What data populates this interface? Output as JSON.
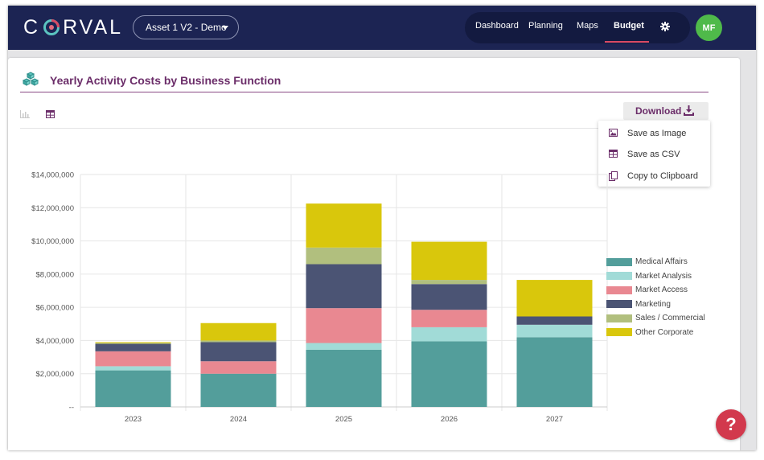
{
  "header": {
    "logo_text_left": "C",
    "logo_text_right": "RVAL",
    "asset_select": "Asset 1 V2 - Demo",
    "nav": [
      {
        "label": "Dashboard",
        "active": false
      },
      {
        "label": "Planning",
        "active": false
      },
      {
        "label": "Maps",
        "active": false
      },
      {
        "label": "Budget",
        "active": true
      }
    ],
    "avatar_initials": "MF",
    "colors": {
      "topbar": "#1c2453",
      "accent": "#d94a64",
      "avatar": "#4fba4a"
    }
  },
  "card": {
    "title": "Yearly Activity Costs by Business Function",
    "title_icon": "cubes-icon",
    "download_label": "Download",
    "download_menu": [
      {
        "label": "Save as Image",
        "icon": "image-icon"
      },
      {
        "label": "Save as CSV",
        "icon": "table-icon"
      },
      {
        "label": "Copy to Clipboard",
        "icon": "clipboard-icon"
      }
    ]
  },
  "help_label": "?",
  "chart_data": {
    "type": "bar",
    "stacked": true,
    "title": "Yearly Activity Costs by Business Function",
    "categories": [
      "2023",
      "2024",
      "2025",
      "2026",
      "2027"
    ],
    "ylim": [
      0,
      14000000
    ],
    "y_ticks": [
      "--",
      "$2,000,000",
      "$4,000,000",
      "$6,000,000",
      "$8,000,000",
      "$10,000,000",
      "$12,000,000",
      "$14,000,000"
    ],
    "series": [
      {
        "name": "Medical Affairs",
        "color": "#539e9b",
        "values": [
          2200000,
          2000000,
          3450000,
          3950000,
          4200000
        ]
      },
      {
        "name": "Market Analysis",
        "color": "#a1dbd7",
        "values": [
          250000,
          0,
          400000,
          850000,
          750000
        ]
      },
      {
        "name": "Market Access",
        "color": "#e98891",
        "values": [
          900000,
          750000,
          2100000,
          1050000,
          0
        ]
      },
      {
        "name": "Marketing",
        "color": "#4b5474",
        "values": [
          450000,
          1150000,
          2650000,
          1550000,
          500000
        ]
      },
      {
        "name": "Sales / Commercial",
        "color": "#b1bf7e",
        "values": [
          50000,
          100000,
          1000000,
          250000,
          0
        ]
      },
      {
        "name": "Other Corporate",
        "color": "#d9c70c",
        "values": [
          50000,
          1050000,
          2650000,
          2300000,
          2200000
        ]
      }
    ],
    "legend_position": "right"
  }
}
